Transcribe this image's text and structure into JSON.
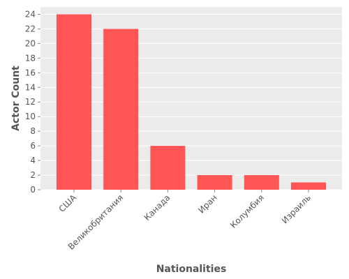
{
  "chart_data": {
    "type": "bar",
    "categories": [
      "США",
      "Великобритания",
      "Канада",
      "Иран",
      "Колумбия",
      "Израиль"
    ],
    "values": [
      24,
      22,
      6,
      2,
      2,
      1
    ],
    "xlabel": "Nationalities",
    "ylabel": "Actor Count",
    "ylim": [
      0,
      25
    ],
    "yticks": [
      0,
      2,
      4,
      6,
      8,
      10,
      12,
      14,
      16,
      18,
      20,
      22,
      24
    ],
    "grid": true,
    "legend": "none",
    "colors": {
      "bar": "#ff5555",
      "background": "#ebebeb",
      "grid": "#ffffff",
      "text": "#555555"
    }
  }
}
